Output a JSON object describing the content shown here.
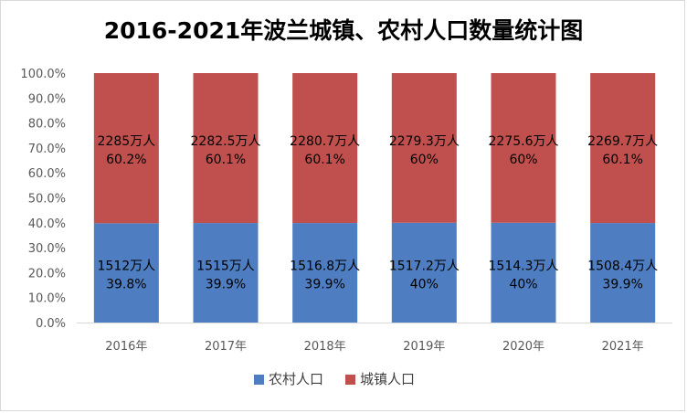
{
  "chart_data": {
    "type": "bar",
    "stacked": true,
    "percent_stacked": true,
    "title": "2016-2021年波兰城镇、农村人口数量统计图",
    "categories": [
      "2016年",
      "2017年",
      "2018年",
      "2019年",
      "2020年",
      "2021年"
    ],
    "y_ticks": [
      "0.0%",
      "10.0%",
      "20.0%",
      "30.0%",
      "40.0%",
      "50.0%",
      "60.0%",
      "70.0%",
      "80.0%",
      "90.0%",
      "100.0%"
    ],
    "ylim": [
      0,
      100
    ],
    "grid": false,
    "legend_position": "bottom",
    "series": [
      {
        "name": "农村人口",
        "color": "#4e7ec1",
        "values": [
          39.8,
          39.9,
          39.9,
          40,
          40,
          39.9
        ],
        "value_labels": [
          "1512万人",
          "1515万人",
          "1516.8万人",
          "1517.2万人",
          "1514.3万人",
          "1508.4万人"
        ],
        "percent_labels": [
          "39.8%",
          "39.9%",
          "39.9%",
          "40%",
          "40%",
          "39.9%"
        ]
      },
      {
        "name": "城镇人口",
        "color": "#c0504d",
        "values": [
          60.2,
          60.1,
          60.1,
          60,
          60,
          60.1
        ],
        "value_labels": [
          "2285万人",
          "2282.5万人",
          "2280.7万人",
          "2279.3万人",
          "2275.6万人",
          "2269.7万人"
        ],
        "percent_labels": [
          "60.2%",
          "60.1%",
          "60.1%",
          "60%",
          "60%",
          "60.1%"
        ]
      }
    ]
  }
}
